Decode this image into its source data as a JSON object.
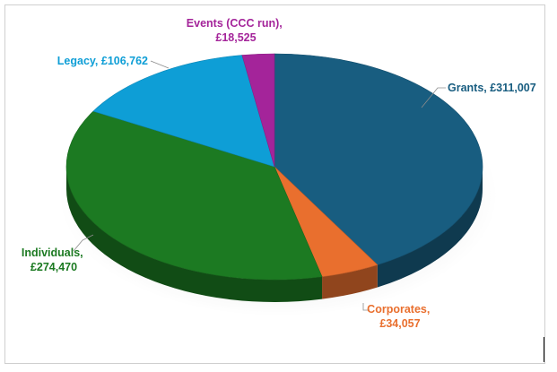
{
  "chart_data": {
    "type": "pie",
    "title": "",
    "legend": "none",
    "slices": [
      {
        "label": "Grants",
        "value": 311007,
        "value_text": "£311,007",
        "color": "#185d80"
      },
      {
        "label": "Corporates",
        "value": 34057,
        "value_text": "£34,057",
        "color": "#e96f2e"
      },
      {
        "label": "Individuals",
        "value": 274470,
        "value_text": "£274,470",
        "color": "#1c7a22"
      },
      {
        "label": "Legacy",
        "value": 106762,
        "value_text": "£106,762",
        "color": "#0e9ed6"
      },
      {
        "label": "Events (CCC run)",
        "value": 18525,
        "value_text": "£18,525",
        "color": "#a4249a"
      }
    ]
  }
}
